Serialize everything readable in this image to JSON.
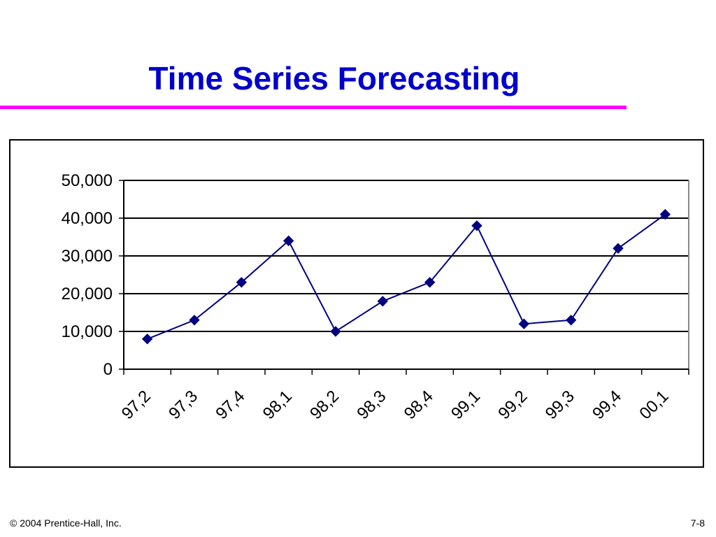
{
  "slide": {
    "title": "Time Series Forecasting",
    "copyright": "© 2004 Prentice-Hall, Inc.",
    "page_number": "7-8",
    "title_color": "#0000cc",
    "rule_color": "#ff00ff"
  },
  "chart_data": {
    "type": "line",
    "title": "",
    "xlabel": "",
    "ylabel": "",
    "categories": [
      "97,2",
      "97,3",
      "97,4",
      "98,1",
      "98,2",
      "98,3",
      "98,4",
      "99,1",
      "99,2",
      "99,3",
      "99,4",
      "00,1"
    ],
    "series": [
      {
        "name": "",
        "values": [
          8000,
          13000,
          23000,
          34000,
          10000,
          18000,
          23000,
          38000,
          12000,
          13000,
          32000,
          41000
        ],
        "color": "#000080",
        "marker": "diamond"
      }
    ],
    "ylim": [
      0,
      50000
    ],
    "yticks": [
      0,
      10000,
      20000,
      30000,
      40000,
      50000
    ],
    "ytick_labels": [
      "0",
      "10,000",
      "20,000",
      "30,000",
      "40,000",
      "50,000"
    ],
    "grid": true,
    "legend": "none"
  }
}
